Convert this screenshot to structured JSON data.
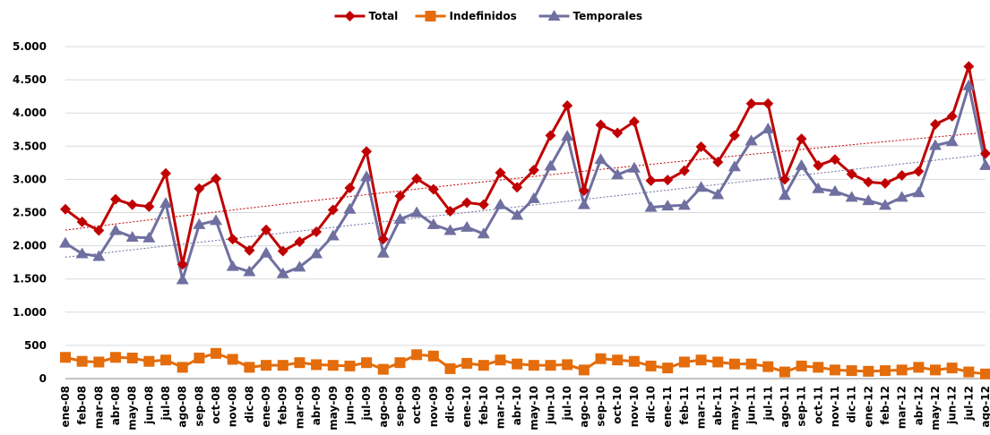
{
  "chart_data": {
    "type": "line",
    "categories": [
      "ene-08",
      "feb-08",
      "mar-08",
      "abr-08",
      "may-08",
      "jun-08",
      "jul-08",
      "ago-08",
      "sep-08",
      "oct-08",
      "nov-08",
      "dic-08",
      "ene-09",
      "feb-09",
      "mar-09",
      "abr-09",
      "may-09",
      "jun-09",
      "jul-09",
      "ago-09",
      "sep-09",
      "oct-09",
      "nov-09",
      "dic-09",
      "ene-10",
      "feb-10",
      "mar-10",
      "abr-10",
      "may-10",
      "jun-10",
      "jul-10",
      "ago-10",
      "sep-10",
      "oct-10",
      "nov-10",
      "dic-10",
      "ene-11",
      "feb-11",
      "mar-11",
      "abr-11",
      "may-11",
      "jun-11",
      "jul-11",
      "ago-11",
      "sep-11",
      "oct-11",
      "nov-11",
      "dic-11",
      "ene-12",
      "feb-12",
      "mar-12",
      "abr-12",
      "may-12",
      "jun-12",
      "jul-12",
      "ago-12"
    ],
    "series": [
      {
        "name": "Total",
        "color": "#c00000",
        "marker": "diamond",
        "trend": "poly2",
        "values": [
          2550,
          2360,
          2230,
          2700,
          2620,
          2590,
          3090,
          1720,
          2860,
          3010,
          2100,
          1930,
          2240,
          1920,
          2060,
          2210,
          2540,
          2870,
          3420,
          2100,
          2750,
          3010,
          2850,
          2520,
          2650,
          2620,
          3100,
          2880,
          3140,
          3660,
          4110,
          2830,
          3820,
          3700,
          3870,
          2980,
          2990,
          3130,
          3490,
          3260,
          3660,
          4140,
          4140,
          3000,
          3610,
          3210,
          3300,
          3080,
          2960,
          2940,
          3060,
          3120,
          3830,
          3950,
          4700,
          3390
        ]
      },
      {
        "name": "Indefinidos",
        "color": "#e46c0a",
        "marker": "square",
        "values": [
          320,
          260,
          250,
          320,
          310,
          260,
          280,
          170,
          310,
          380,
          290,
          170,
          200,
          200,
          240,
          210,
          200,
          190,
          240,
          140,
          240,
          360,
          340,
          150,
          230,
          200,
          280,
          220,
          200,
          200,
          210,
          130,
          300,
          280,
          260,
          190,
          160,
          250,
          280,
          250,
          220,
          220,
          180,
          100,
          190,
          170,
          130,
          120,
          110,
          120,
          130,
          170,
          130,
          160,
          100,
          70
        ]
      },
      {
        "name": "Temporales",
        "color": "#6f6fa0",
        "marker": "triangle",
        "trend": "linear",
        "values": [
          2040,
          1880,
          1840,
          2230,
          2130,
          2120,
          2640,
          1490,
          2320,
          2380,
          1690,
          1610,
          1890,
          1580,
          1680,
          1880,
          2150,
          2550,
          3040,
          1890,
          2400,
          2500,
          2320,
          2230,
          2280,
          2180,
          2620,
          2460,
          2710,
          3200,
          3650,
          2620,
          3300,
          3070,
          3170,
          2580,
          2600,
          2610,
          2880,
          2770,
          3190,
          3580,
          3760,
          2760,
          3210,
          2860,
          2820,
          2730,
          2680,
          2610,
          2730,
          2800,
          3510,
          3570,
          4410,
          3210
        ]
      }
    ],
    "ylim": [
      0,
      5000
    ],
    "yticks": [
      0,
      500,
      {
        "value": 1000,
        "label": "1.000"
      },
      {
        "value": 1500,
        "label": "1.500"
      },
      {
        "value": 2000,
        "label": "2.000"
      },
      {
        "value": 2500,
        "label": "2.500"
      },
      {
        "value": 3000,
        "label": "3.000"
      },
      {
        "value": 3500,
        "label": "3.500"
      },
      {
        "value": 4000,
        "label": "4.000"
      },
      {
        "value": 4500,
        "label": "4.500"
      },
      {
        "value": 5000,
        "label": "5.000"
      }
    ],
    "grid": true,
    "legend": "top"
  }
}
